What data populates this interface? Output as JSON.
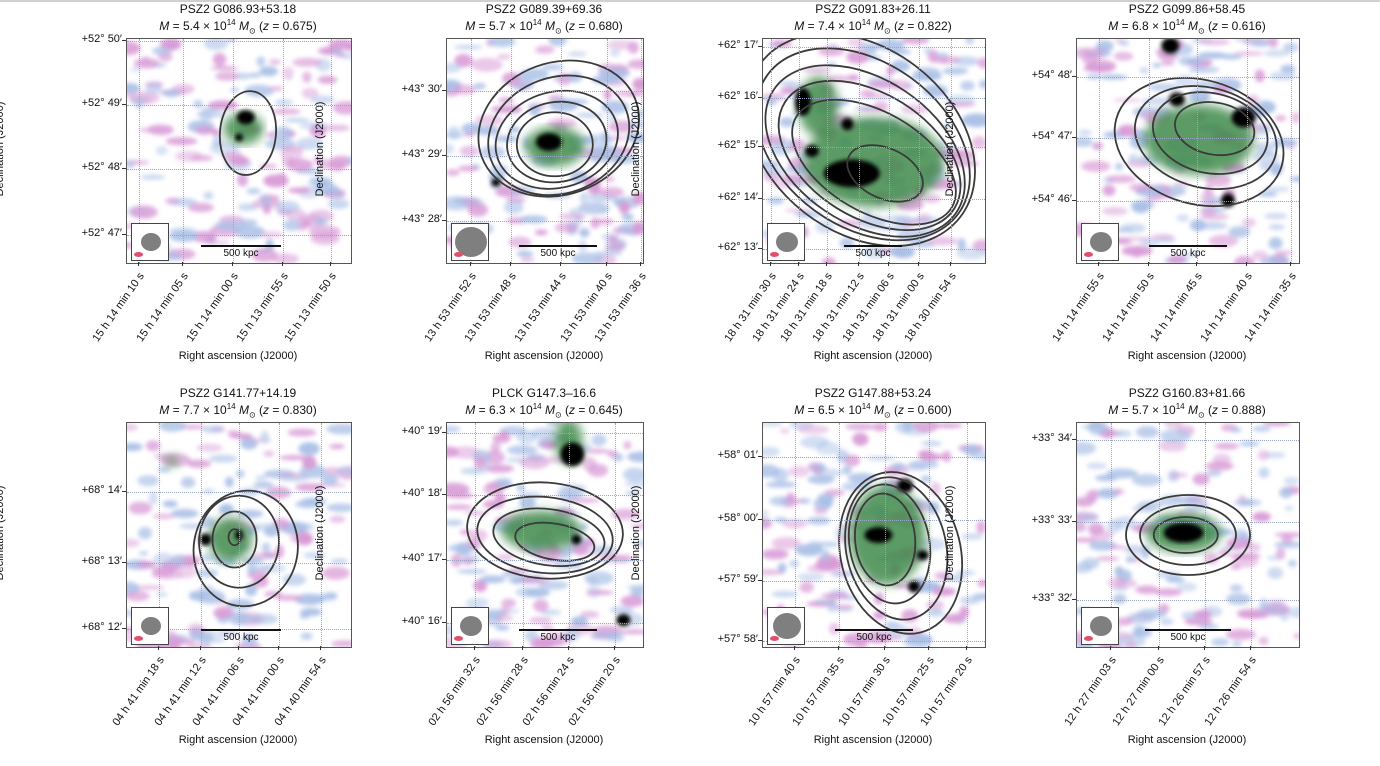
{
  "colors": {
    "contour": "#3a3a3a",
    "noise_blue": "#a9bfe6",
    "noise_pink": "#d89ad6",
    "emission_green": "#3f8a4a",
    "core": "#000000"
  },
  "axis_labels": {
    "x": "Right ascension (J2000)",
    "y": "Declination (J2000)"
  },
  "scale_label": "500 kpc",
  "panels": [
    {
      "name": "PSZ2 G086.93+53.18",
      "mass": "5.4",
      "z": "0.675",
      "dec": [
        "+52° 50′",
        "+52° 49′",
        "+52° 48′",
        "+52° 47′"
      ],
      "ra": [
        "15 h 14 min 10 s",
        "15 h 14 min 05 s",
        "15 h 14 min 00 s",
        "15 h 13 min 55 s",
        "15 h 13 min 50 s"
      ]
    },
    {
      "name": "PSZ2 G089.39+69.36",
      "mass": "5.7",
      "z": "0.680",
      "dec": [
        "+43° 30′",
        "+43° 29′",
        "+43° 28′"
      ],
      "ra": [
        "13 h 53 min 52 s",
        "13 h 53 min 48 s",
        "13 h 53 min 44 s",
        "13 h 53 min 40 s",
        "13 h 53 min 36 s"
      ]
    },
    {
      "name": "PSZ2 G091.83+26.11",
      "mass": "7.4",
      "z": "0.822",
      "dec": [
        "+62° 17′",
        "+62° 16′",
        "+62° 15′",
        "+62° 14′",
        "+62° 13′"
      ],
      "ra": [
        "18 h 31 min 30 s",
        "18 h 31 min 24 s",
        "18 h 31 min 18 s",
        "18 h 31 min 12 s",
        "18 h 31 min 06 s",
        "18 h 31 min 00 s",
        "18 h 30 min 54 s"
      ]
    },
    {
      "name": "PSZ2 G099.86+58.45",
      "mass": "6.8",
      "z": "0.616",
      "dec": [
        "+54° 48′",
        "+54° 47′",
        "+54° 46′"
      ],
      "ra": [
        "14 h 14 min 55 s",
        "14 h 14 min 50 s",
        "14 h 14 min 45 s",
        "14 h 14 min 40 s",
        "14 h 14 min 35 s"
      ]
    },
    {
      "name": "PSZ2 G141.77+14.19",
      "mass": "7.7",
      "z": "0.830",
      "dec": [
        "+68° 14′",
        "+68° 13′",
        "+68° 12′"
      ],
      "ra": [
        "04 h 41 min 18 s",
        "04 h 41 min 12 s",
        "04 h 41 min 06 s",
        "04 h 41 min 00 s",
        "04 h 40 min 54 s"
      ]
    },
    {
      "name": "PLCK G147.3–16.6",
      "mass": "6.3",
      "z": "0.645",
      "dec": [
        "+40° 19′",
        "+40° 18′",
        "+40° 17′",
        "+40° 16′"
      ],
      "ra": [
        "02 h 56 min 32 s",
        "02 h 56 min 28 s",
        "02 h 56 min 24 s",
        "02 h 56 min 20 s"
      ]
    },
    {
      "name": "PSZ2 G147.88+53.24",
      "mass": "6.5",
      "z": "0.600",
      "dec": [
        "+58° 01′",
        "+58° 00′",
        "+57° 59′",
        "+57° 58′"
      ],
      "ra": [
        "10 h 57 min 40 s",
        "10 h 57 min 35 s",
        "10 h 57 min 30 s",
        "10 h 57 min 25 s",
        "10 h 57 min 20 s"
      ]
    },
    {
      "name": "PSZ2 G160.83+81.66",
      "mass": "5.7",
      "z": "0.888",
      "dec": [
        "+33° 34′",
        "+33° 33′",
        "+33° 32′"
      ],
      "ra": [
        "12 h 27 min 03 s",
        "12 h 27 min 00 s",
        "12 h 26 min 57 s",
        "12 h 26 min 54 s"
      ]
    }
  ]
}
